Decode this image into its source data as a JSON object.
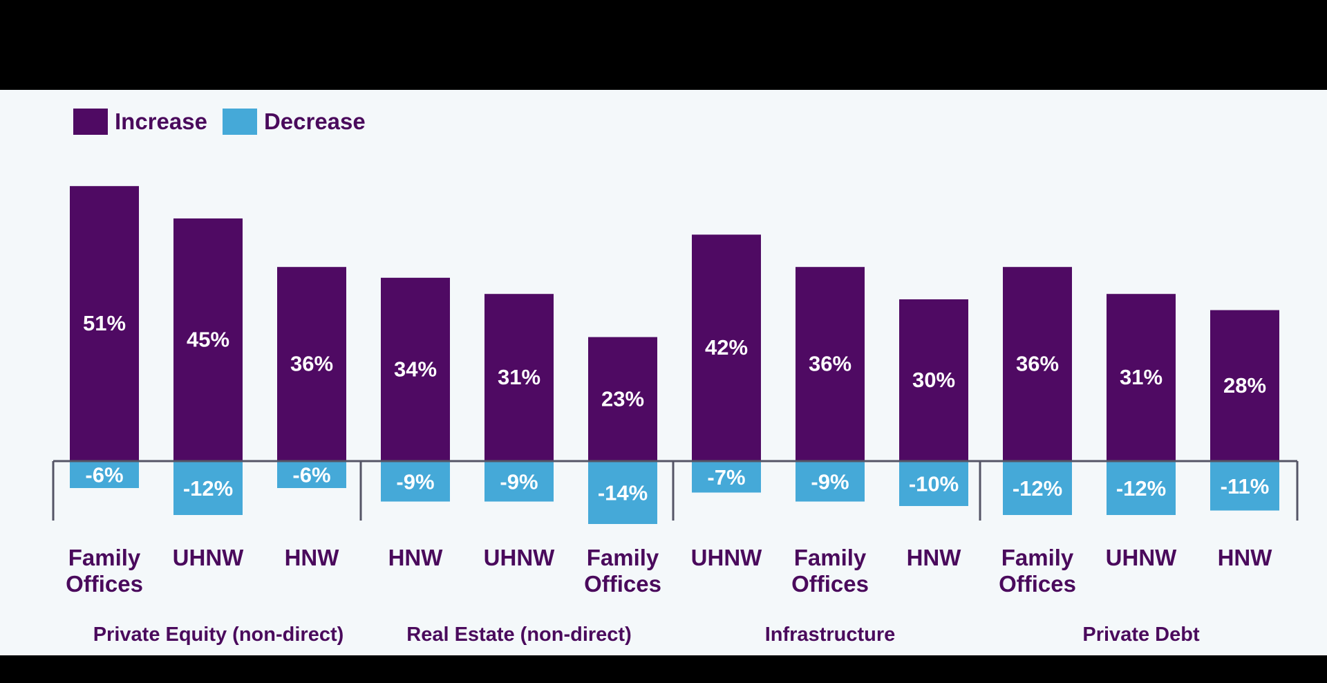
{
  "colors": {
    "increase": "#4f0a63",
    "decrease": "#45a9d8",
    "text": "#4a0a5c",
    "axis": "#555566"
  },
  "legend": {
    "increase_label": "Increase",
    "decrease_label": "Decrease"
  },
  "chart_data": {
    "type": "bar",
    "title": "",
    "xlabel": "",
    "ylabel": "",
    "ylim": [
      -15,
      55
    ],
    "grid": false,
    "legend_position": "top-left",
    "groups": [
      {
        "name": "Private Equity (non-direct)",
        "categories": [
          {
            "label": [
              "Family",
              "Offices"
            ],
            "increase": 51,
            "decrease": -6,
            "increase_text": "51%",
            "decrease_text": "-6%"
          },
          {
            "label": [
              "UHNW"
            ],
            "increase": 45,
            "decrease": -12,
            "increase_text": "45%",
            "decrease_text": "-12%"
          },
          {
            "label": [
              "HNW"
            ],
            "increase": 36,
            "decrease": -6,
            "increase_text": "36%",
            "decrease_text": "-6%"
          }
        ]
      },
      {
        "name": "Real Estate (non-direct)",
        "categories": [
          {
            "label": [
              "HNW"
            ],
            "increase": 34,
            "decrease": -9,
            "increase_text": "34%",
            "decrease_text": "-9%"
          },
          {
            "label": [
              "UHNW"
            ],
            "increase": 31,
            "decrease": -9,
            "increase_text": "31%",
            "decrease_text": "-9%"
          },
          {
            "label": [
              "Family",
              "Offices"
            ],
            "increase": 23,
            "decrease": -14,
            "increase_text": "23%",
            "decrease_text": "-14%"
          }
        ]
      },
      {
        "name": "Infrastructure",
        "categories": [
          {
            "label": [
              "UHNW"
            ],
            "increase": 42,
            "decrease": -7,
            "increase_text": "42%",
            "decrease_text": "-7%"
          },
          {
            "label": [
              "Family",
              "Offices"
            ],
            "increase": 36,
            "decrease": -9,
            "increase_text": "36%",
            "decrease_text": "-9%"
          },
          {
            "label": [
              "HNW"
            ],
            "increase": 30,
            "decrease": -10,
            "increase_text": "30%",
            "decrease_text": "-10%"
          }
        ]
      },
      {
        "name": "Private Debt",
        "categories": [
          {
            "label": [
              "Family",
              "Offices"
            ],
            "increase": 36,
            "decrease": -12,
            "increase_text": "36%",
            "decrease_text": "-12%"
          },
          {
            "label": [
              "UHNW"
            ],
            "increase": 31,
            "decrease": -12,
            "increase_text": "31%",
            "decrease_text": "-12%"
          },
          {
            "label": [
              "HNW"
            ],
            "increase": 28,
            "decrease": -11,
            "increase_text": "28%",
            "decrease_text": "-11%"
          }
        ]
      }
    ]
  }
}
